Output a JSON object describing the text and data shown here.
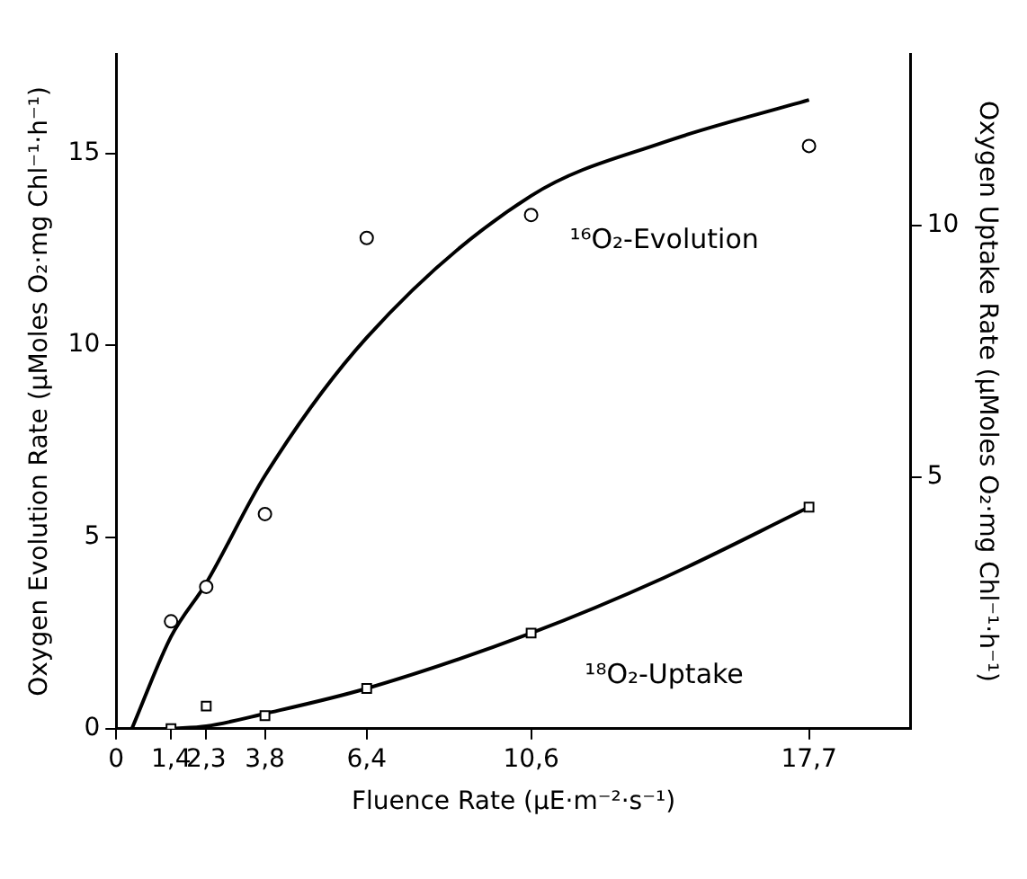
{
  "chart_data": {
    "type": "scatter",
    "xlabel": "Fluence Rate (μE·m⁻²·s⁻¹)",
    "ylabel": "Oxygen Evolution Rate (μMoles O₂·mg Chl⁻¹·h⁻¹)",
    "y2label": "Oxygen Uptake Rate (μMoles O₂·mg Chl⁻¹·h⁻¹)",
    "xlim": [
      0,
      20.3
    ],
    "xticks": [
      0,
      {
        "value": 1.4,
        "label": "1,4"
      },
      {
        "value": 2.3,
        "label": "2,3"
      },
      {
        "value": 3.8,
        "label": "3,8"
      },
      {
        "value": 6.4,
        "label": "6,4"
      },
      {
        "value": 10.6,
        "label": "10,6"
      },
      {
        "value": 17.7,
        "label": "17,7"
      }
    ],
    "ylim": [
      0,
      17.6
    ],
    "yticks": [
      0,
      5,
      10,
      15
    ],
    "y2lim": [
      0,
      13.4
    ],
    "y2ticks": [
      5,
      10
    ],
    "grid": false,
    "legend": false,
    "series": [
      {
        "color": "#000000",
        "marker": "circle",
        "x": [
          1.4,
          2.3,
          3.8,
          6.4,
          10.6,
          17.7
        ],
        "values": [
          2.8,
          3.7,
          5.6,
          12.8,
          13.4,
          15.2
        ]
      },
      {
        "type": "line",
        "name": "¹⁶O₂-Evolution",
        "color": "#000000",
        "marker": "none",
        "line_style": "solid",
        "x": [
          0.4,
          1.4,
          2.3,
          3.8,
          6.4,
          10.6,
          14,
          17.7
        ],
        "values": [
          0,
          2.4,
          3.8,
          6.6,
          10.2,
          13.9,
          15.3,
          16.4
        ]
      },
      {
        "axis": "y2",
        "color": "#000000",
        "marker": "square",
        "x": [
          1.4,
          2.3,
          3.8,
          6.4,
          10.6,
          17.7
        ],
        "values": [
          0,
          0.45,
          0.26,
          0.8,
          1.9,
          4.4
        ]
      },
      {
        "type": "line",
        "name": "¹⁸O₂-Uptake",
        "axis": "y2",
        "color": "#000000",
        "marker": "none",
        "line_style": "solid",
        "x": [
          1.4,
          2.3,
          3.8,
          6.4,
          10.6,
          14,
          17.7
        ],
        "values": [
          0,
          0.05,
          0.3,
          0.8,
          1.9,
          3.0,
          4.4
        ]
      }
    ]
  }
}
